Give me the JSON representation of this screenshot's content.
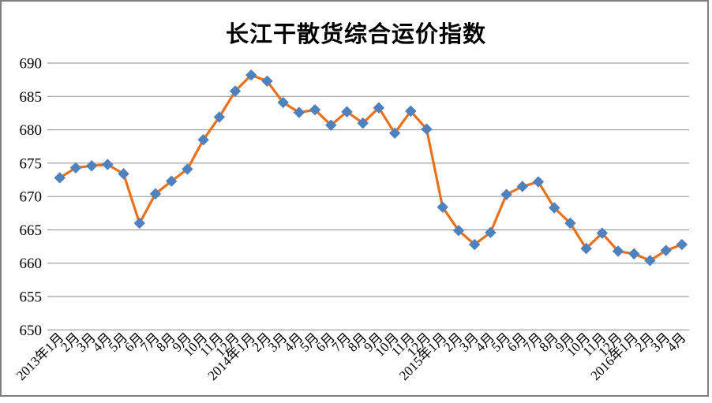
{
  "chart_data": {
    "type": "line",
    "title": "长江干散货综合运价指数",
    "xlabel": "",
    "ylabel": "",
    "ylim": [
      650,
      690
    ],
    "yticks": [
      650,
      655,
      660,
      665,
      670,
      675,
      680,
      685,
      690
    ],
    "grid": true,
    "legend": "none",
    "categories": [
      "2013年1月",
      "2月",
      "3月",
      "4月",
      "5月",
      "6月",
      "7月",
      "8月",
      "9月",
      "10月",
      "11月",
      "12月",
      "2014年1月",
      "2月",
      "3月",
      "4月",
      "5月",
      "6月",
      "7月",
      "8月",
      "9月",
      "10月",
      "11月",
      "12月",
      "2015年1月",
      "2月",
      "3月",
      "4月",
      "5月",
      "6月",
      "7月",
      "8月",
      "9月",
      "10月",
      "11月",
      "12月",
      "2016年1月",
      "2月",
      "3月",
      "4月"
    ],
    "values": [
      672.8,
      674.3,
      674.6,
      674.8,
      673.4,
      666.0,
      670.4,
      672.3,
      674.1,
      678.5,
      681.9,
      685.8,
      688.2,
      687.3,
      684.1,
      682.6,
      683.0,
      680.7,
      682.7,
      681.0,
      683.3,
      679.5,
      682.8,
      680.1,
      668.4,
      664.9,
      662.8,
      664.6,
      670.3,
      671.5,
      672.2,
      668.3,
      666.0,
      662.2,
      664.5,
      661.8,
      661.4,
      660.4,
      661.9,
      662.8
    ],
    "marker_shape": "diamond",
    "colors": {
      "line": "#E8711E",
      "marker": "#4F81BD",
      "gridline": "#8C8C8C",
      "frame_border": "#7F7F7F",
      "text": "#000000"
    }
  }
}
